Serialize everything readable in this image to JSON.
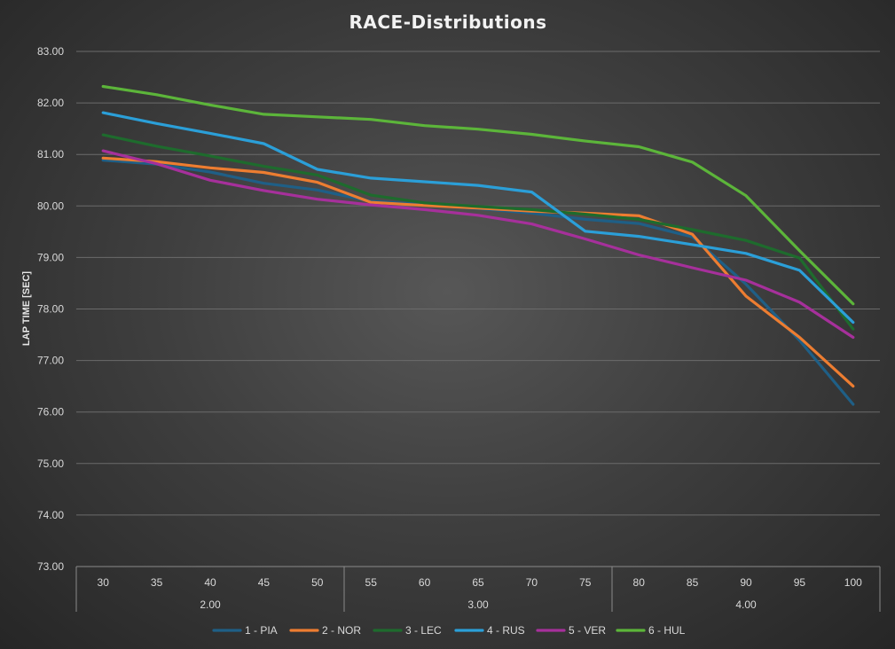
{
  "chart_data": {
    "type": "line",
    "title": "RACE-Distributions",
    "ylabel": "LAP TIME [SEC]",
    "xlabel": "",
    "ylim": [
      73,
      83
    ],
    "yticks": [
      "73.00",
      "74.00",
      "75.00",
      "76.00",
      "77.00",
      "78.00",
      "79.00",
      "80.00",
      "81.00",
      "82.00",
      "83.00"
    ],
    "categories": [
      "30",
      "35",
      "40",
      "45",
      "50",
      "55",
      "60",
      "65",
      "70",
      "75",
      "80",
      "85",
      "90",
      "95",
      "100"
    ],
    "groups": [
      {
        "label": "2.00",
        "span": 5
      },
      {
        "label": "3.00",
        "span": 5
      },
      {
        "label": "4.00",
        "span": 5
      }
    ],
    "grid": true,
    "legend_position": "bottom",
    "series": [
      {
        "name": "1 - PIA",
        "color": "#1f5f86",
        "values": [
          80.89,
          80.81,
          80.66,
          80.44,
          80.31,
          80.09,
          80.03,
          79.95,
          79.86,
          79.74,
          79.66,
          79.4,
          78.48,
          77.39,
          76.15
        ]
      },
      {
        "name": "2 - NOR",
        "color": "#ed7d31",
        "values": [
          80.93,
          80.86,
          80.74,
          80.65,
          80.46,
          80.07,
          80.01,
          79.96,
          79.9,
          79.86,
          79.81,
          79.45,
          78.25,
          77.45,
          76.5
        ]
      },
      {
        "name": "3 - LEC",
        "color": "#1e6b2d",
        "values": [
          81.38,
          81.16,
          80.97,
          80.77,
          80.6,
          80.21,
          80.06,
          79.99,
          79.93,
          79.84,
          79.74,
          79.54,
          79.33,
          78.99,
          77.61
        ]
      },
      {
        "name": "4 - RUS",
        "color": "#2b9fd8",
        "values": [
          81.81,
          81.6,
          81.41,
          81.21,
          80.71,
          80.54,
          80.47,
          80.4,
          80.27,
          79.51,
          79.41,
          79.25,
          79.08,
          78.75,
          77.74
        ]
      },
      {
        "name": "5 - VER",
        "color": "#a6309b",
        "values": [
          81.07,
          80.82,
          80.5,
          80.3,
          80.13,
          80.02,
          79.93,
          79.82,
          79.65,
          79.36,
          79.05,
          78.8,
          78.56,
          78.13,
          77.45
        ]
      },
      {
        "name": "6 - HUL",
        "color": "#5cb53a",
        "values": [
          82.32,
          82.16,
          81.96,
          81.78,
          81.73,
          81.68,
          81.56,
          81.49,
          81.39,
          81.26,
          81.15,
          80.85,
          80.2,
          79.13,
          78.1
        ]
      }
    ]
  }
}
